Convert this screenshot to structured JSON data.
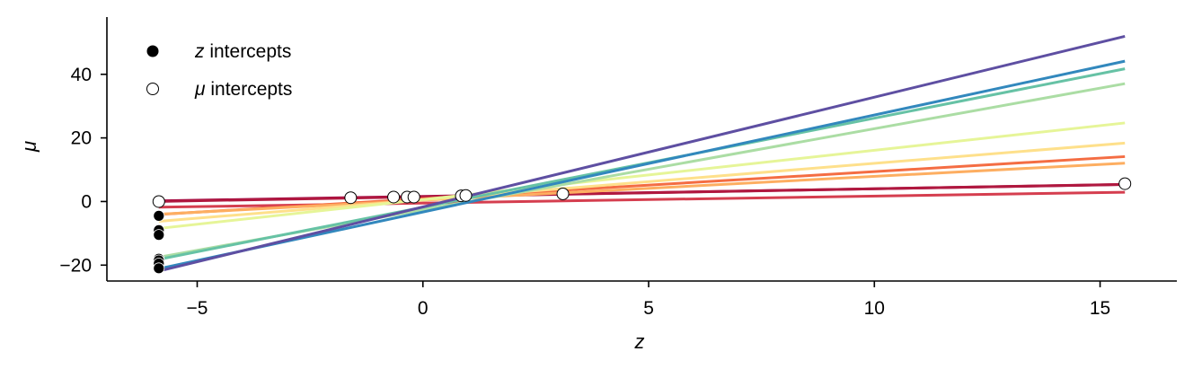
{
  "chart_data": {
    "type": "line",
    "xlabel": "z",
    "ylabel": "μ",
    "xlim": [
      -7.0,
      16.7
    ],
    "ylim": [
      -25,
      58
    ],
    "x_ticks": [
      -5,
      0,
      5,
      10,
      15
    ],
    "y_ticks": [
      -20,
      0,
      20,
      40
    ],
    "x_tick_labels": [
      "−5",
      "0",
      "5",
      "10",
      "15"
    ],
    "y_tick_labels": [
      "−20",
      "0",
      "20",
      "40"
    ],
    "grid": false,
    "legend": {
      "position": "top-left",
      "entries": [
        {
          "label_italic": "z",
          "label_rest": " intercepts",
          "marker": "filled",
          "color": "#000000"
        },
        {
          "label_italic": "μ",
          "label_rest": " intercepts",
          "marker": "hollow",
          "color": "#ffffff"
        }
      ]
    },
    "x_range": [
      -5.85,
      15.55
    ],
    "series": [
      {
        "slope": 0.24,
        "intercept": 1.6,
        "color": "#9e0142"
      },
      {
        "slope": 0.25,
        "intercept": 1.5,
        "color": "#b0183f"
      },
      {
        "slope": 0.22,
        "intercept": -0.5,
        "color": "#d53e4f"
      },
      {
        "slope": 0.85,
        "intercept": 0.9,
        "color": "#f46d43"
      },
      {
        "slope": 0.75,
        "intercept": 0.4,
        "color": "#fdae61"
      },
      {
        "slope": 1.15,
        "intercept": 0.5,
        "color": "#fee08b"
      },
      {
        "slope": 1.55,
        "intercept": 0.6,
        "color": "#e6f598"
      },
      {
        "slope": 2.55,
        "intercept": -2.6,
        "color": "#abdda4"
      },
      {
        "slope": 2.8,
        "intercept": -1.8,
        "color": "#66c2a5"
      },
      {
        "slope": 3.05,
        "intercept": -3.3,
        "color": "#3288bd"
      },
      {
        "slope": 3.45,
        "intercept": -1.7,
        "color": "#5e4fa2"
      }
    ],
    "z_intercepts": {
      "x": -5.85,
      "y": [
        0.0,
        -4.5,
        -9.0,
        -10.5,
        -18.0,
        -18.5,
        -19.5,
        -21.0
      ]
    },
    "mu_intercepts": {
      "x": [
        -5.85,
        -1.6,
        -0.65,
        -0.35,
        -0.2,
        0.85,
        0.95,
        3.1,
        15.55
      ],
      "y": [
        0.0,
        1.2,
        1.4,
        1.4,
        1.4,
        1.8,
        1.9,
        2.4,
        5.6
      ]
    }
  }
}
